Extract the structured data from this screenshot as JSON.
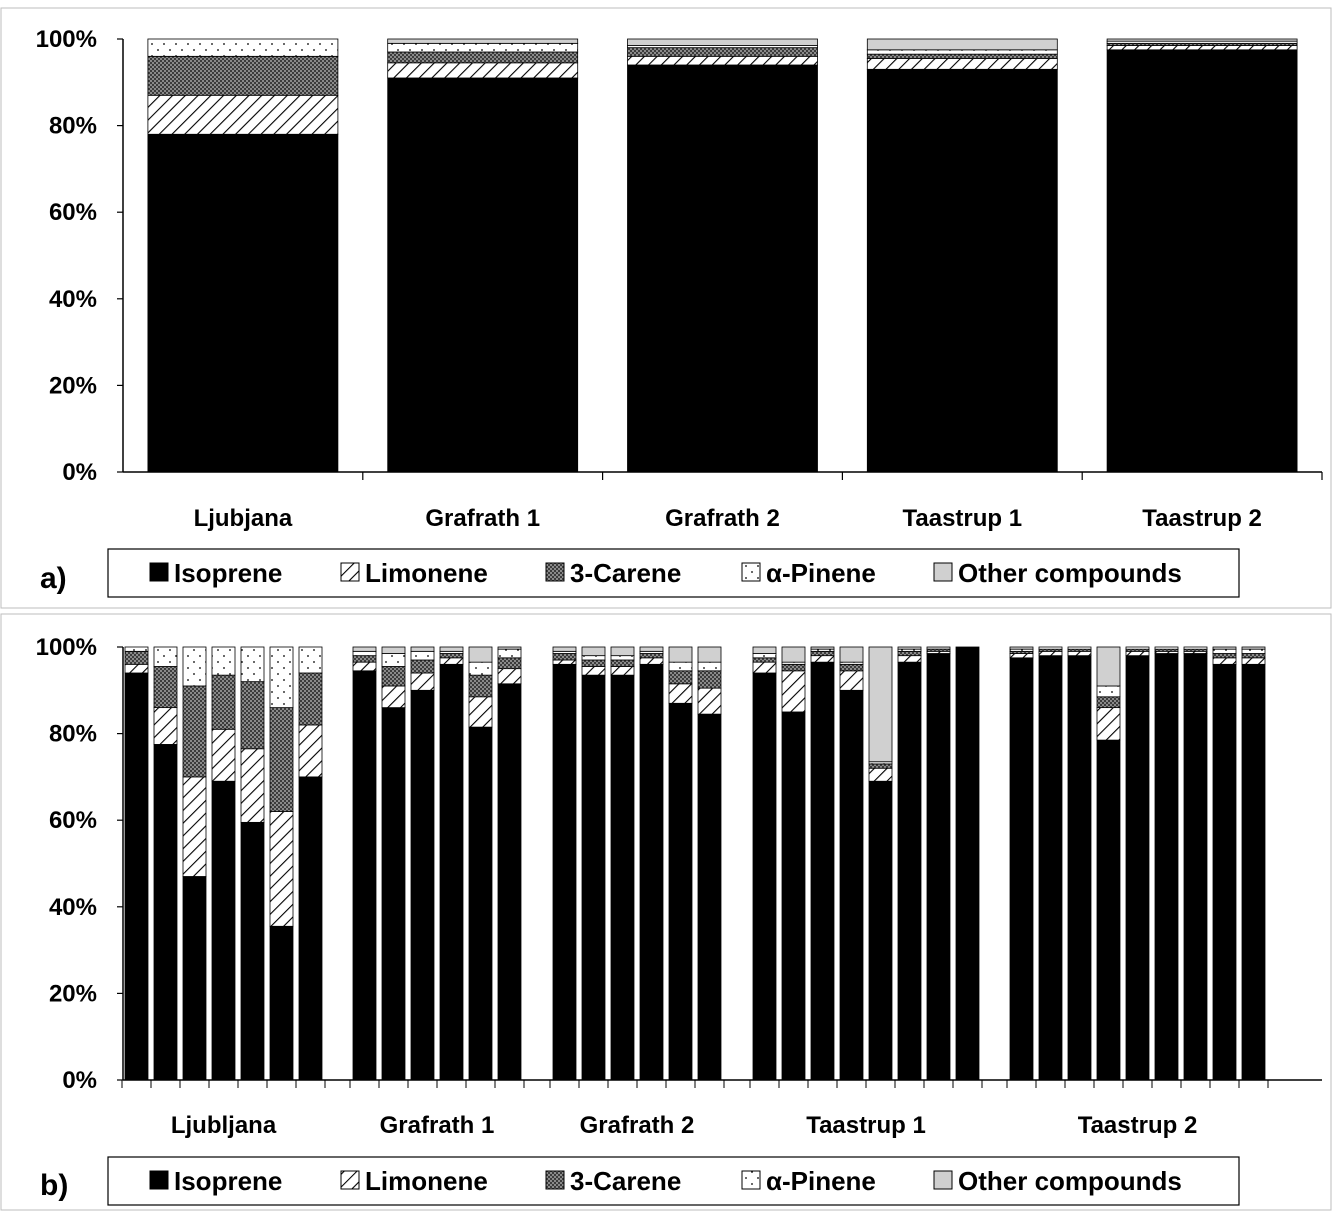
{
  "colors": {
    "isoprene": "#000000",
    "limonene": "#ffffff",
    "carene": "#7f7f7f",
    "pinene": "#ffffff",
    "other": "#d0d0d0"
  },
  "legend": [
    "Isoprene",
    "Limonene",
    "3-Carene",
    "α-Pinene",
    "Other compounds"
  ],
  "chart_data": [
    {
      "type": "bar",
      "stacked": true,
      "normalized": true,
      "panel_label": "a)",
      "categories": [
        "Ljubjana",
        "Grafrath 1",
        "Grafrath 2",
        "Taastrup 1",
        "Taastrup 2"
      ],
      "yticks": [
        "0%",
        "20%",
        "40%",
        "60%",
        "80%",
        "100%"
      ],
      "ylim": [
        0,
        100
      ],
      "grid": false,
      "legend_position": "bottom",
      "series": [
        {
          "name": "Isoprene",
          "values": [
            78,
            91,
            94,
            93,
            97.5
          ]
        },
        {
          "name": "Limonene",
          "values": [
            9,
            3.5,
            2,
            2.5,
            1
          ]
        },
        {
          "name": "3-Carene",
          "values": [
            9,
            2.5,
            2,
            1,
            0.5
          ]
        },
        {
          "name": "α-Pinene",
          "values": [
            4,
            2,
            0.5,
            1,
            0.5
          ]
        },
        {
          "name": "Other compounds",
          "values": [
            0,
            1,
            1.5,
            2.5,
            0.5
          ]
        }
      ]
    },
    {
      "type": "bar",
      "stacked": true,
      "normalized": true,
      "panel_label": "b)",
      "groups": [
        {
          "label": "Ljubljana",
          "isoprene": [
            94,
            77.5,
            47,
            69,
            59.5,
            35.5,
            70
          ],
          "limonene": [
            2,
            8.5,
            23,
            12,
            17,
            26.5,
            12
          ],
          "carene": [
            3,
            9.5,
            21,
            12.5,
            15.5,
            24,
            12
          ],
          "pinene": [
            1,
            4.5,
            9,
            6.5,
            8,
            14,
            6
          ],
          "other": [
            0,
            0,
            0,
            0,
            0,
            0,
            0
          ]
        },
        {
          "label": "Grafrath 1",
          "isoprene": [
            94.5,
            86,
            90,
            96,
            81.5,
            91.5
          ],
          "limonene": [
            2,
            5,
            4,
            1.5,
            7,
            3.5
          ],
          "carene": [
            1.5,
            4.5,
            3,
            1,
            5,
            2.5
          ],
          "pinene": [
            1,
            3,
            2,
            0.5,
            3,
            2
          ],
          "other": [
            1,
            1.5,
            1,
            1,
            3.5,
            0.5
          ]
        },
        {
          "label": "Grafrath 2",
          "isoprene": [
            96,
            93.5,
            93.5,
            96,
            87,
            84.5
          ],
          "limonene": [
            1,
            2,
            2,
            1.5,
            4.5,
            6
          ],
          "carene": [
            1.5,
            1.5,
            1.5,
            1,
            3,
            4
          ],
          "pinene": [
            0.5,
            1,
            1,
            0.5,
            2,
            2
          ],
          "other": [
            1,
            2,
            2,
            1,
            3.5,
            3.5
          ]
        },
        {
          "label": "Taastrup 1",
          "isoprene": [
            94,
            85,
            96.5,
            90,
            69,
            96.5,
            98.5,
            100
          ],
          "limonene": [
            2.5,
            9.5,
            1.5,
            4.5,
            3,
            1.5,
            0.5,
            0
          ],
          "carene": [
            1,
            1.5,
            1,
            1.5,
            1,
            1,
            0.5,
            0
          ],
          "pinene": [
            1,
            0.5,
            0.5,
            0.5,
            0.5,
            0.5,
            0,
            0
          ],
          "other": [
            1.5,
            3.5,
            0.5,
            3.5,
            26.5,
            0.5,
            0.5,
            0
          ]
        },
        {
          "label": "Taastrup 2",
          "isoprene": [
            97.5,
            98,
            98,
            78.5,
            98,
            98.5,
            98.5,
            96,
            96
          ],
          "limonene": [
            1,
            1,
            1,
            7.5,
            1,
            0.5,
            0.5,
            1.5,
            1.5
          ],
          "carene": [
            0.5,
            0.5,
            0.5,
            2.5,
            0.5,
            0.5,
            0.5,
            1,
            1
          ],
          "pinene": [
            0.5,
            0.5,
            0.5,
            2.5,
            0.5,
            0.5,
            0.5,
            1,
            1
          ],
          "other": [
            0.5,
            0,
            0,
            9,
            0,
            0,
            0,
            0.5,
            0.5
          ]
        }
      ],
      "yticks": [
        "0%",
        "20%",
        "40%",
        "60%",
        "80%",
        "100%"
      ],
      "ylim": [
        0,
        100
      ],
      "grid": false,
      "legend_position": "bottom"
    }
  ]
}
